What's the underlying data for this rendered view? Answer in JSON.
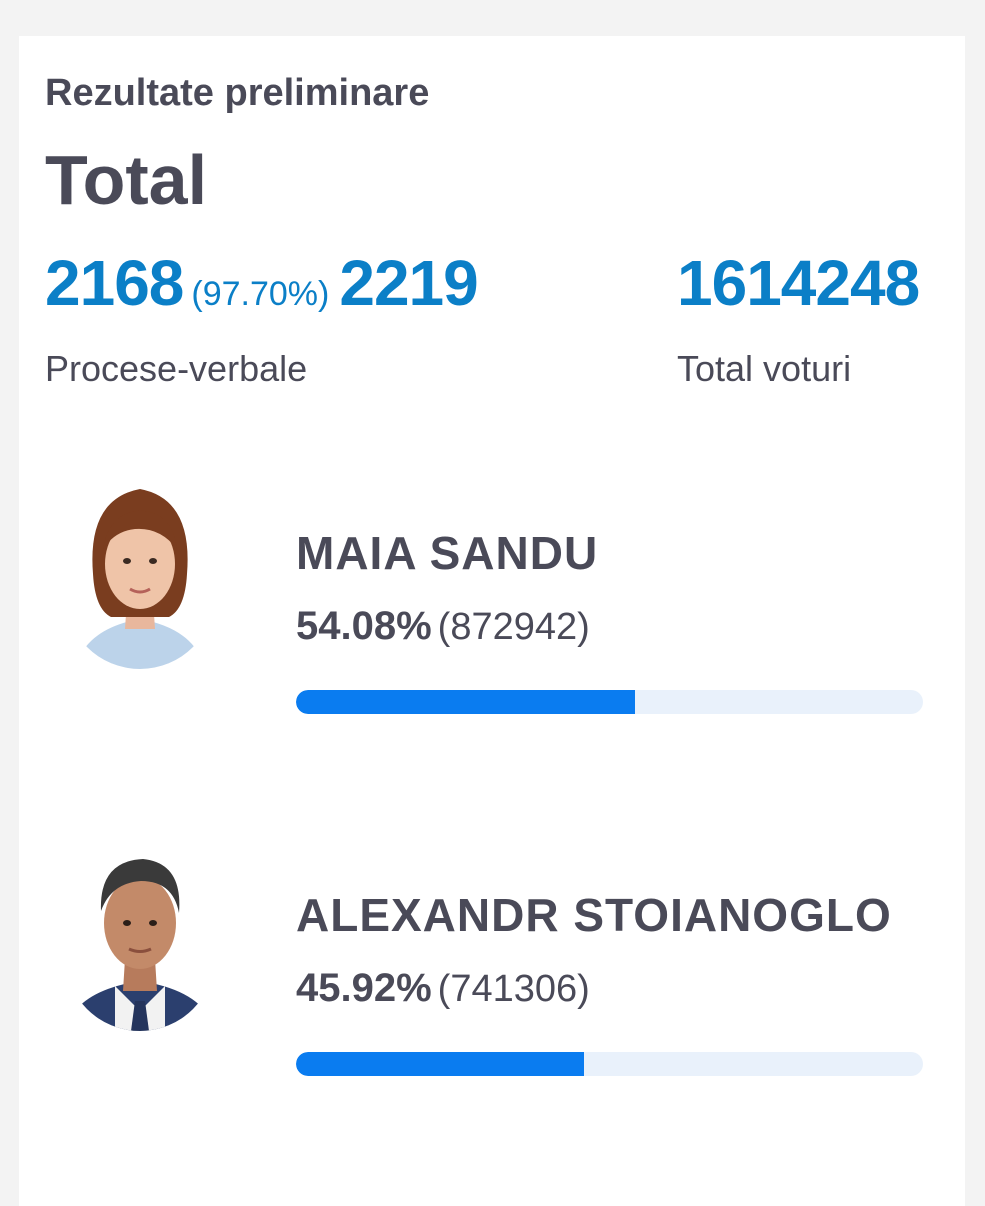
{
  "header": {
    "subtitle": "Rezultate preliminare",
    "title": "Total"
  },
  "stats": {
    "processed": "2168",
    "processed_pct": "(97.70%)",
    "total_reports": "2219",
    "reports_label": "Procese-verbale",
    "total_votes": "1614248",
    "votes_label": "Total voturi"
  },
  "candidates": [
    {
      "name": "MAIA SANDU",
      "percent": "54.08%",
      "votes": "(872942)",
      "share": 0.5408,
      "photo_icon": "woman-portrait-icon"
    },
    {
      "name": "ALEXANDR STOIANOGLO",
      "percent": "45.92%",
      "votes": "(741306)",
      "share": 0.4592,
      "photo_icon": "man-portrait-icon"
    }
  ],
  "colors": {
    "accent": "#0b7fc7",
    "bar_fill": "#0a7cf0",
    "bar_track": "#e9f1fb",
    "text": "#4a4a58"
  }
}
